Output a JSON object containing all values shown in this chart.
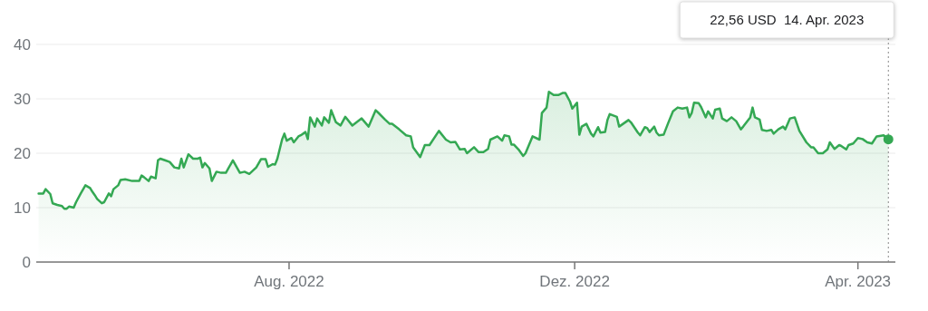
{
  "chart_data": {
    "type": "area",
    "xlim": [
      "2022-04-15",
      "2023-04-17"
    ],
    "ylim": [
      0,
      40
    ],
    "yticks": [
      0,
      10,
      20,
      30,
      40
    ],
    "xticks": [
      {
        "value": "2022-08-01",
        "label": "Aug. 2022"
      },
      {
        "value": "2022-12-01",
        "label": "Dez. 2022"
      },
      {
        "value": "2023-04-01",
        "label": "Apr. 2023"
      }
    ],
    "grid": "y",
    "marker": "none",
    "line_style": "solid",
    "ref_lines": [
      {
        "axis": "x",
        "value": "2023-04-14",
        "label": "22,56 USD  14. Apr. 2023",
        "color": "#888888",
        "line_style": "dotted"
      }
    ],
    "series": [
      {
        "color": "#34a853",
        "x": [
          "2022-04-16",
          "2022-04-18",
          "2022-04-19",
          "2022-04-21",
          "2022-04-22",
          "2022-04-24",
          "2022-04-26",
          "2022-04-27",
          "2022-04-28",
          "2022-04-29",
          "2022-05-01",
          "2022-05-02",
          "2022-05-04",
          "2022-05-06",
          "2022-05-08",
          "2022-05-09",
          "2022-05-10",
          "2022-05-11",
          "2022-05-13",
          "2022-05-14",
          "2022-05-16",
          "2022-05-17",
          "2022-05-18",
          "2022-05-20",
          "2022-05-21",
          "2022-05-23",
          "2022-05-26",
          "2022-05-29",
          "2022-05-30",
          "2022-05-31",
          "2022-06-02",
          "2022-06-03",
          "2022-06-05",
          "2022-06-06",
          "2022-06-07",
          "2022-06-09",
          "2022-06-11",
          "2022-06-13",
          "2022-06-15",
          "2022-06-16",
          "2022-06-17",
          "2022-06-19",
          "2022-06-21",
          "2022-06-23",
          "2022-06-24",
          "2022-06-25",
          "2022-06-26",
          "2022-06-28",
          "2022-06-29",
          "2022-07-01",
          "2022-07-03",
          "2022-07-05",
          "2022-07-08",
          "2022-07-11",
          "2022-07-13",
          "2022-07-15",
          "2022-07-18",
          "2022-07-20",
          "2022-07-22",
          "2022-07-23",
          "2022-07-25",
          "2022-07-26",
          "2022-07-27",
          "2022-07-29",
          "2022-07-30",
          "2022-07-31",
          "2022-08-02",
          "2022-08-03",
          "2022-08-05",
          "2022-08-06",
          "2022-08-08",
          "2022-08-09",
          "2022-08-10",
          "2022-08-12",
          "2022-08-13",
          "2022-08-15",
          "2022-08-16",
          "2022-08-18",
          "2022-08-19",
          "2022-08-21",
          "2022-08-23",
          "2022-08-25",
          "2022-08-28",
          "2022-09-01",
          "2022-09-04",
          "2022-09-07",
          "2022-09-08",
          "2022-09-11",
          "2022-09-13",
          "2022-09-14",
          "2022-09-17",
          "2022-09-20",
          "2022-09-22",
          "2022-09-23",
          "2022-09-26",
          "2022-09-28",
          "2022-09-30",
          "2022-10-04",
          "2022-10-07",
          "2022-10-09",
          "2022-10-11",
          "2022-10-13",
          "2022-10-15",
          "2022-10-16",
          "2022-10-19",
          "2022-10-21",
          "2022-10-23",
          "2022-10-25",
          "2022-10-26",
          "2022-10-29",
          "2022-10-31",
          "2022-11-01",
          "2022-11-03",
          "2022-11-04",
          "2022-11-05",
          "2022-11-07",
          "2022-11-09",
          "2022-11-10",
          "2022-11-13",
          "2022-11-16",
          "2022-11-17",
          "2022-11-19",
          "2022-11-20",
          "2022-11-22",
          "2022-11-24",
          "2022-11-26",
          "2022-11-27",
          "2022-11-29",
          "2022-11-30",
          "2022-12-02",
          "2022-12-03",
          "2022-12-04",
          "2022-12-06",
          "2022-12-08",
          "2022-12-09",
          "2022-12-11",
          "2022-12-12",
          "2022-12-14",
          "2022-12-15",
          "2022-12-16",
          "2022-12-19",
          "2022-12-20",
          "2022-12-24",
          "2022-12-25",
          "2022-12-28",
          "2022-12-29",
          "2022-12-31",
          "2023-01-01",
          "2023-01-02",
          "2023-01-04",
          "2023-01-05",
          "2023-01-06",
          "2023-01-08",
          "2023-01-10",
          "2023-01-12",
          "2023-01-14",
          "2023-01-16",
          "2023-01-18",
          "2023-01-19",
          "2023-01-20",
          "2023-01-21",
          "2023-01-23",
          "2023-01-24",
          "2023-01-26",
          "2023-01-27",
          "2023-01-29",
          "2023-01-30",
          "2023-02-01",
          "2023-02-02",
          "2023-02-04",
          "2023-02-06",
          "2023-02-08",
          "2023-02-10",
          "2023-02-11",
          "2023-02-14",
          "2023-02-15",
          "2023-02-16",
          "2023-02-18",
          "2023-02-19",
          "2023-02-21",
          "2023-02-23",
          "2023-02-24",
          "2023-02-26",
          "2023-02-28",
          "2023-03-01",
          "2023-03-03",
          "2023-03-05",
          "2023-03-07",
          "2023-03-10",
          "2023-03-12",
          "2023-03-13",
          "2023-03-15",
          "2023-03-17",
          "2023-03-19",
          "2023-03-20",
          "2023-03-22",
          "2023-03-24",
          "2023-03-25",
          "2023-03-27",
          "2023-03-28",
          "2023-03-30",
          "2023-04-01",
          "2023-04-03",
          "2023-04-05",
          "2023-04-07",
          "2023-04-09",
          "2023-04-12",
          "2023-04-14"
        ],
        "values": [
          12.6,
          12.6,
          13.4,
          12.5,
          10.8,
          10.5,
          10.3,
          9.8,
          9.8,
          10.2,
          10.0,
          11.0,
          12.6,
          14.1,
          13.6,
          12.9,
          12.3,
          11.6,
          10.8,
          11.0,
          12.6,
          12.1,
          13.4,
          14.1,
          15.1,
          15.2,
          14.9,
          14.9,
          15.9,
          15.6,
          14.9,
          15.7,
          15.4,
          18.7,
          19.0,
          18.7,
          18.4,
          17.4,
          17.2,
          19.0,
          17.4,
          19.8,
          19.0,
          19.0,
          19.2,
          17.4,
          18.2,
          17.2,
          14.9,
          16.6,
          16.4,
          16.4,
          18.7,
          16.4,
          16.6,
          16.2,
          17.4,
          18.9,
          18.9,
          17.5,
          18.0,
          17.9,
          19.0,
          22.5,
          23.6,
          22.3,
          22.8,
          22.0,
          23.1,
          23.3,
          23.9,
          22.6,
          26.6,
          24.9,
          26.4,
          25.1,
          26.6,
          25.6,
          27.9,
          25.7,
          25.1,
          26.7,
          25.1,
          26.4,
          24.9,
          27.9,
          27.5,
          26.2,
          25.4,
          25.4,
          24.4,
          23.3,
          23.1,
          21.1,
          19.3,
          21.5,
          21.5,
          24.1,
          22.5,
          22.0,
          22.1,
          20.7,
          20.8,
          20.0,
          21.1,
          20.2,
          20.2,
          20.8,
          22.5,
          23.1,
          22.3,
          23.3,
          23.1,
          21.6,
          21.6,
          20.7,
          19.5,
          20.0,
          23.1,
          22.5,
          27.4,
          28.4,
          31.3,
          30.7,
          30.7,
          31.1,
          31.1,
          29.5,
          28.2,
          29.3,
          23.4,
          24.9,
          25.4,
          23.6,
          23.1,
          24.8,
          23.8,
          23.9,
          26.1,
          27.2,
          26.7,
          24.9,
          26.1,
          25.7,
          23.8,
          23.3,
          24.8,
          24.6,
          23.9,
          24.9,
          23.8,
          23.3,
          23.4,
          25.6,
          27.7,
          28.4,
          28.2,
          28.4,
          26.6,
          27.4,
          29.3,
          29.2,
          28.5,
          26.6,
          27.7,
          26.4,
          28.0,
          28.2,
          26.4,
          25.9,
          26.6,
          25.9,
          24.4,
          24.9,
          26.6,
          28.4,
          26.6,
          26.2,
          24.3,
          24.1,
          24.3,
          23.6,
          24.4,
          24.9,
          24.4,
          26.4,
          26.6,
          24.1,
          22.0,
          21.1,
          21.1,
          20.0,
          20.0,
          20.7,
          22.0,
          20.8,
          21.5,
          21.3,
          20.7,
          21.5,
          21.8,
          22.8,
          22.6,
          22.0,
          21.8,
          23.1,
          23.3,
          22.56
        ]
      }
    ]
  }
}
